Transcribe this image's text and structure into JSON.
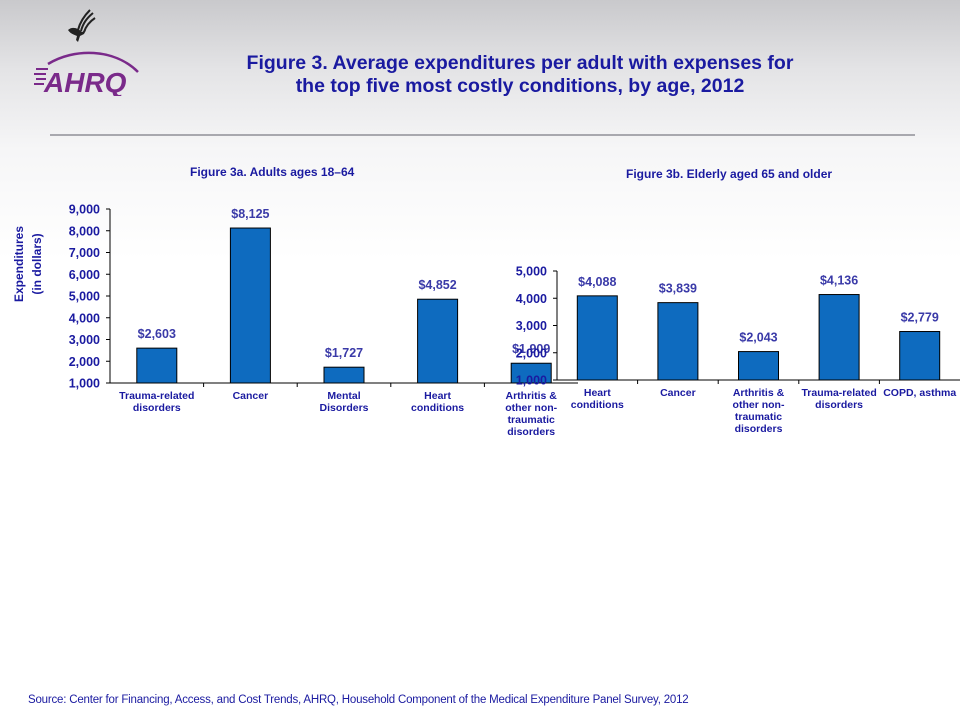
{
  "header": {
    "title_line1": "Figure 3. Average expenditures per adult with expenses for",
    "title_line2": "the top five most costly conditions, by age, 2012",
    "logo_hhs_icon": "hhs-eagle-icon",
    "logo_ahrq_text": "AHRQ"
  },
  "colors": {
    "bar": "#0e6bbf",
    "text": "#1a1aa0",
    "value_label": "#3a3aa8",
    "logo": "#7a2a8a"
  },
  "y_axis_label": {
    "line1": "Expenditures",
    "line2": "(in dollars)"
  },
  "chart_data": [
    {
      "type": "bar",
      "title": "Figure 3a. Adults ages 18–64",
      "xlabel": "",
      "ylabel": "Expenditures (in dollars)",
      "categories": [
        [
          "Trauma-related",
          "disorders"
        ],
        [
          "Cancer"
        ],
        [
          "Mental",
          "Disorders"
        ],
        [
          "Heart",
          "conditions"
        ],
        [
          "Arthritis &",
          "other non-",
          "traumatic",
          "disorders"
        ]
      ],
      "values": [
        2603,
        8125,
        1727,
        4852,
        1909
      ],
      "value_labels": [
        "$2,603",
        "$8,125",
        "$1,727",
        "$4,852",
        "$1,909"
      ],
      "ylim": [
        1000,
        9000
      ],
      "yticks": [
        1000,
        2000,
        3000,
        4000,
        5000,
        6000,
        7000,
        8000,
        9000
      ],
      "ytick_labels": [
        "1,000",
        "2,000",
        "3,000",
        "4,000",
        "5,000",
        "6,000",
        "7,000",
        "8,000",
        "9,000"
      ],
      "grid": false,
      "legend": "none"
    },
    {
      "type": "bar",
      "title": "Figure 3b. Elderly aged 65 and older",
      "xlabel": "",
      "ylabel": "",
      "categories": [
        [
          "Heart",
          "conditions"
        ],
        [
          "Cancer"
        ],
        [
          "Arthritis &",
          "other non-",
          "traumatic",
          "disorders"
        ],
        [
          "Trauma-related",
          "disorders"
        ],
        [
          "COPD, asthma"
        ]
      ],
      "values": [
        4088,
        3839,
        2043,
        4136,
        2779
      ],
      "value_labels": [
        "$4,088",
        "$3,839",
        "$2,043",
        "$4,136",
        "$2,779"
      ],
      "ylim": [
        1000,
        5000
      ],
      "yticks": [
        1000,
        2000,
        3000,
        4000,
        5000
      ],
      "ytick_labels": [
        "1,000",
        "2,000",
        "3,000",
        "4,000",
        "5,000"
      ],
      "grid": false,
      "legend": "none"
    }
  ],
  "footer": {
    "source": "Source: Center for Financing, Access, and Cost Trends, AHRQ, Household Component of the Medical Expenditure Panel Survey,  2012"
  }
}
